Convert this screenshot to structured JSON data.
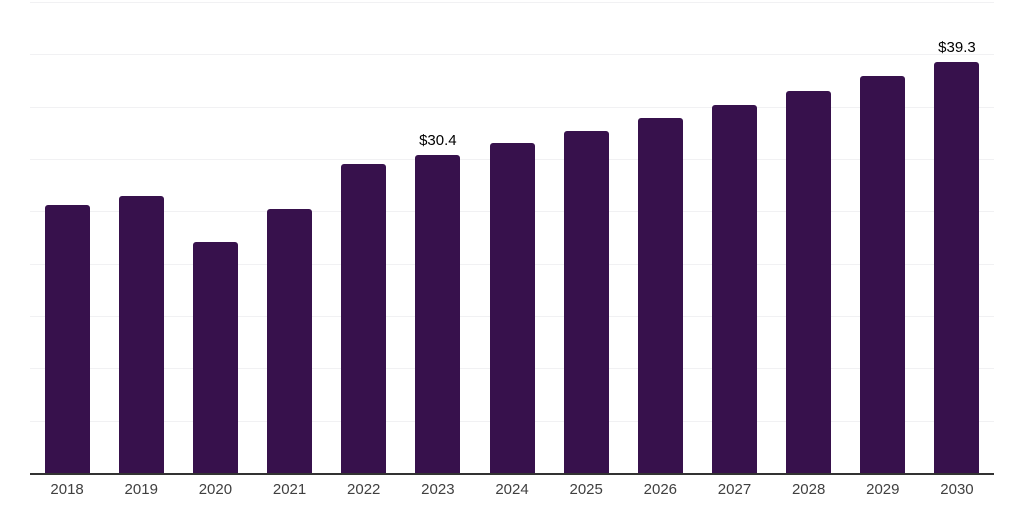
{
  "chart_data": {
    "type": "bar",
    "categories": [
      "2018",
      "2019",
      "2020",
      "2021",
      "2022",
      "2023",
      "2024",
      "2025",
      "2026",
      "2027",
      "2028",
      "2029",
      "2030"
    ],
    "values": [
      25.6,
      26.5,
      22.1,
      25.2,
      29.5,
      30.4,
      31.5,
      32.7,
      33.9,
      35.2,
      36.5,
      37.9,
      39.3
    ],
    "point_labels": [
      "",
      "",
      "",
      "",
      "",
      "$30.4",
      "",
      "",
      "",
      "",
      "",
      "",
      "$39.3"
    ],
    "title": "",
    "xlabel": "",
    "ylabel": "",
    "ylim": [
      0,
      45
    ],
    "grid_interval": 5,
    "grid": "on",
    "legend": "none",
    "y_tick_labels_visible": false,
    "colors": {
      "bar": "#37114C",
      "gridline": "#F1F1F3",
      "axis_line": "#333333",
      "x_tick_label": "#404040",
      "data_label": "#000000",
      "background": "#FFFFFF"
    }
  }
}
